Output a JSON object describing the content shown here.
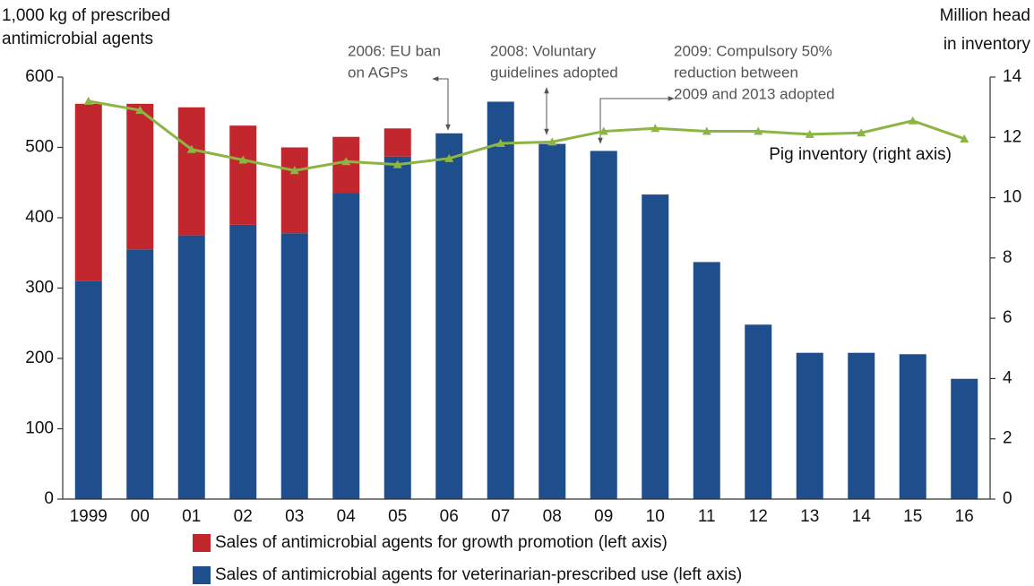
{
  "chart_data": {
    "type": "bar",
    "left_axis_label": [
      "1,000 kg of prescribed",
      "antimicrobial agents"
    ],
    "right_axis_label": [
      "Million head",
      "in inventory"
    ],
    "categories": [
      "1999",
      "00",
      "01",
      "02",
      "03",
      "04",
      "05",
      "06",
      "07",
      "08",
      "09",
      "10",
      "11",
      "12",
      "13",
      "14",
      "15",
      "16"
    ],
    "stacked": true,
    "series": [
      {
        "name": "Sales of antimicrobial agents for veterinarian-prescribed use (left axis)",
        "color": "#1f4e8c",
        "values": [
          310,
          355,
          375,
          390,
          378,
          435,
          487,
          520,
          565,
          505,
          495,
          433,
          337,
          248,
          208,
          208,
          206,
          171
        ]
      },
      {
        "name": "Sales of antimicrobial agents for growth promotion (left axis)",
        "color": "#c1272d",
        "values": [
          252,
          207,
          182,
          141,
          122,
          80,
          40,
          null,
          null,
          null,
          null,
          null,
          null,
          null,
          null,
          null,
          null,
          null
        ]
      },
      {
        "name": "Pig inventory (right axis)",
        "color": "#8db543",
        "type": "line",
        "axis": "y2",
        "values": [
          13.2,
          12.9,
          11.6,
          11.25,
          10.9,
          11.2,
          11.1,
          11.3,
          11.8,
          11.85,
          12.2,
          12.3,
          12.2,
          12.2,
          12.1,
          12.15,
          12.55,
          11.95
        ]
      }
    ],
    "ylim": [
      0,
      600
    ],
    "yticks": [
      0,
      100,
      200,
      300,
      400,
      500,
      600
    ],
    "y2lim": [
      0,
      14
    ],
    "y2ticks": [
      0,
      2,
      4,
      6,
      8,
      10,
      12,
      14
    ],
    "annotations": [
      {
        "lines": [
          "2006: EU ban",
          "on AGPs"
        ]
      },
      {
        "lines": [
          "2008: Voluntary",
          "guidelines adopted"
        ]
      },
      {
        "lines": [
          "2009: Compulsory 50%",
          "reduction between",
          "2009 and 2013 adopted"
        ]
      }
    ]
  }
}
